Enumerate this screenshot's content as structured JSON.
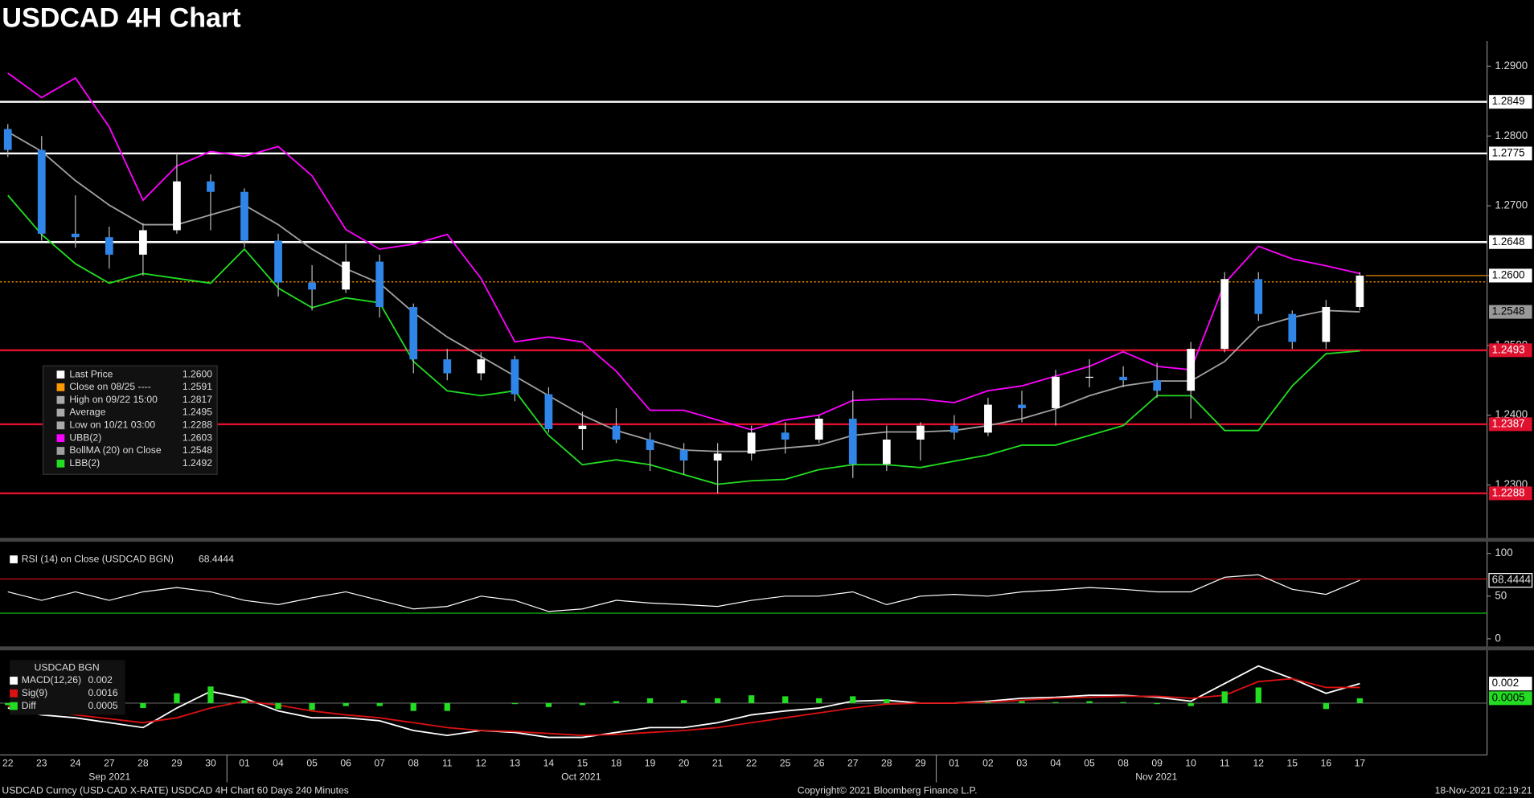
{
  "header": {
    "title": "USDCAD 4H Chart"
  },
  "footer": {
    "left": "USDCAD Curncy (USD-CAD X-RATE) USDCAD 4H Chart 60 Days 240 Minutes",
    "center": "Copyright© 2021 Bloomberg Finance L.P.",
    "right": "18-Nov-2021 02:19:21"
  },
  "chart_data": [
    {
      "type": "candlestick",
      "categories": [
        "22",
        "23",
        "24",
        "27",
        "28",
        "29",
        "30",
        "01",
        "04",
        "05",
        "06",
        "07",
        "08",
        "11",
        "12",
        "13",
        "14",
        "15",
        "18",
        "19",
        "20",
        "21",
        "22",
        "25",
        "26",
        "27",
        "28",
        "29",
        "01",
        "02",
        "03",
        "04",
        "05",
        "08",
        "09",
        "10",
        "11",
        "12",
        "15",
        "16",
        "17"
      ],
      "x_groups": [
        "Sep 2021",
        "Oct 2021",
        "Nov 2021"
      ],
      "open": [
        1.281,
        1.278,
        1.266,
        1.2655,
        1.263,
        1.2665,
        1.2735,
        1.272,
        1.265,
        1.259,
        1.258,
        1.262,
        1.2555,
        1.248,
        1.246,
        1.248,
        1.243,
        1.238,
        1.2385,
        1.2365,
        1.235,
        1.2335,
        1.2345,
        1.2375,
        1.2365,
        1.2395,
        1.233,
        1.2365,
        1.2385,
        1.2375,
        1.2415,
        1.241,
        1.2455,
        1.2455,
        1.245,
        1.2435,
        1.2495,
        1.2595,
        1.2545,
        1.2505,
        1.2555
      ],
      "high": [
        1.2817,
        1.28,
        1.2715,
        1.267,
        1.2675,
        1.2775,
        1.2745,
        1.2725,
        1.266,
        1.2615,
        1.2645,
        1.263,
        1.256,
        1.2495,
        1.249,
        1.2485,
        1.244,
        1.2405,
        1.241,
        1.2375,
        1.236,
        1.236,
        1.2385,
        1.239,
        1.24,
        1.2435,
        1.2385,
        1.239,
        1.24,
        1.2425,
        1.2435,
        1.2465,
        1.248,
        1.247,
        1.2475,
        1.2505,
        1.2605,
        1.2605,
        1.255,
        1.2565,
        1.2605
      ],
      "low": [
        1.277,
        1.265,
        1.264,
        1.261,
        1.26,
        1.266,
        1.2665,
        1.264,
        1.257,
        1.255,
        1.2575,
        1.254,
        1.246,
        1.245,
        1.245,
        1.242,
        1.2375,
        1.235,
        1.236,
        1.232,
        1.2315,
        1.2288,
        1.2335,
        1.2345,
        1.236,
        1.231,
        1.232,
        1.2335,
        1.2365,
        1.237,
        1.239,
        1.2385,
        1.244,
        1.244,
        1.2425,
        1.2395,
        1.249,
        1.2535,
        1.2495,
        1.2495,
        1.255
      ],
      "close": [
        1.278,
        1.266,
        1.2655,
        1.263,
        1.2665,
        1.2735,
        1.272,
        1.265,
        1.259,
        1.258,
        1.262,
        1.2555,
        1.248,
        1.246,
        1.248,
        1.243,
        1.238,
        1.2385,
        1.2365,
        1.235,
        1.2335,
        1.2345,
        1.2375,
        1.2365,
        1.2395,
        1.233,
        1.2365,
        1.2385,
        1.2375,
        1.2415,
        1.241,
        1.2455,
        1.2455,
        1.245,
        1.2435,
        1.2495,
        1.2595,
        1.2545,
        1.2505,
        1.2555,
        1.26
      ],
      "up_color": "#ffffff",
      "down_color": "#2f86e8",
      "series": [
        {
          "name": "UBB(2)",
          "color": "#ff00ff",
          "last_label": "1.2603",
          "values": [
            1.289,
            1.2855,
            1.2883,
            1.2813,
            1.2708,
            1.2757,
            1.2778,
            1.2771,
            1.2785,
            1.2743,
            1.2666,
            1.2638,
            1.2645,
            1.2659,
            1.2596,
            1.2505,
            1.2512,
            1.2505,
            1.2463,
            1.2407,
            1.2407,
            1.2393,
            1.2379,
            1.2393,
            1.24,
            1.2421,
            1.2423,
            1.2423,
            1.2418,
            1.2435,
            1.2442,
            1.2456,
            1.247,
            1.2491,
            1.247,
            1.2465,
            1.2589,
            1.2642,
            1.2624,
            1.2614,
            1.2603
          ]
        },
        {
          "name": "BollMA (20)  on Close",
          "color": "#a0a0a0",
          "last_label": "1.2548",
          "values": [
            1.2806,
            1.2778,
            1.2736,
            1.2701,
            1.2673,
            1.2673,
            1.2687,
            1.2701,
            1.2673,
            1.2638,
            1.261,
            1.2589,
            1.2547,
            1.2512,
            1.2484,
            1.2456,
            1.2428,
            1.24,
            1.2378,
            1.2364,
            1.235,
            1.2348,
            1.2348,
            1.2353,
            1.2357,
            1.2371,
            1.2376,
            1.2376,
            1.2378,
            1.2385,
            1.2395,
            1.2409,
            1.2428,
            1.2442,
            1.2449,
            1.2449,
            1.2477,
            1.2526,
            1.254,
            1.255,
            1.2548
          ]
        },
        {
          "name": "LBB(2)",
          "color": "#22dd22",
          "last_label": "1.2492",
          "values": [
            1.2715,
            1.2659,
            1.2617,
            1.2589,
            1.2603,
            1.2596,
            1.2589,
            1.2638,
            1.2582,
            1.2554,
            1.2568,
            1.2561,
            1.2477,
            1.2435,
            1.2428,
            1.2435,
            1.2371,
            1.2329,
            1.2336,
            1.2329,
            1.2315,
            1.2301,
            1.2306,
            1.2308,
            1.2322,
            1.2329,
            1.2329,
            1.2325,
            1.2334,
            1.2343,
            1.2357,
            1.2357,
            1.2371,
            1.2385,
            1.2428,
            1.2428,
            1.2378,
            1.2378,
            1.2442,
            1.2488,
            1.2492
          ]
        }
      ],
      "legend": [
        {
          "label": "Last Price",
          "value": "1.2600",
          "color": "#ffffff"
        },
        {
          "label": "Close on 08/25 ----",
          "value": "1.2591",
          "color": "#ff9900"
        },
        {
          "label": "High on 09/22 15:00",
          "value": "1.2817",
          "color": "#aaaaaa"
        },
        {
          "label": "Average",
          "value": "1.2495",
          "color": "#aaaaaa"
        },
        {
          "label": "Low on 10/21 03:00",
          "value": "1.2288",
          "color": "#aaaaaa"
        }
      ],
      "levels": [
        {
          "value": 1.2849,
          "label": "1.2849",
          "color": "#ffffff",
          "text_color": "#000000"
        },
        {
          "value": 1.2775,
          "label": "1.2775",
          "color": "#ffffff",
          "text_color": "#000000"
        },
        {
          "value": 1.2648,
          "label": "1.2648",
          "color": "#ffffff",
          "text_color": "#000000"
        },
        {
          "value": 1.2591,
          "color": "#ff9900",
          "dotted": true
        },
        {
          "value": 1.2493,
          "label": "1.2493",
          "color": "#e0102f",
          "text_color": "#ffffff"
        },
        {
          "value": 1.2387,
          "label": "1.2387",
          "color": "#e0102f",
          "text_color": "#ffffff"
        },
        {
          "value": 1.2288,
          "label": "1.2288",
          "color": "#e0102f",
          "text_color": "#ffffff"
        }
      ],
      "ylim": [
        1.2227,
        1.2936
      ],
      "yticks": [
        {
          "value": 1.23,
          "label": "1.2300"
        },
        {
          "value": 1.24,
          "label": "1.2400"
        },
        {
          "value": 1.25,
          "label": "1.2500"
        },
        {
          "value": 1.26,
          "label": "1.2600"
        },
        {
          "value": 1.27,
          "label": "1.2700"
        },
        {
          "value": 1.28,
          "label": "1.2800"
        },
        {
          "value": 1.29,
          "label": "1.2900"
        }
      ]
    },
    {
      "type": "line",
      "title": "RSI (14)  on Close (USDCAD BGN)",
      "last_label": "68.4444",
      "series": [
        {
          "color": "#ffffff",
          "values": [
            55,
            45,
            55,
            45,
            55,
            60,
            55,
            45,
            40,
            48,
            55,
            45,
            35,
            38,
            50,
            45,
            32,
            35,
            45,
            42,
            40,
            38,
            45,
            50,
            50,
            55,
            40,
            50,
            52,
            50,
            55,
            57,
            60,
            58,
            55,
            55,
            72,
            75,
            58,
            52,
            68.4444
          ]
        }
      ],
      "levels": [
        {
          "value": 70,
          "color": "#cc1111"
        },
        {
          "value": 30,
          "color": "#11bb11"
        }
      ],
      "ylim": [
        -10,
        109
      ],
      "yticks": [
        0,
        50,
        100
      ]
    },
    {
      "type": "macd",
      "title": "USDCAD BGN",
      "series": [
        {
          "name": "MACD(12,26)",
          "color": "#ffffff",
          "last_label": "0.002",
          "values": [
            -0.0005,
            -0.0012,
            -0.0015,
            -0.002,
            -0.0025,
            -0.0005,
            0.0012,
            0.0005,
            -0.0008,
            -0.0015,
            -0.0015,
            -0.0018,
            -0.0028,
            -0.0033,
            -0.0028,
            -0.003,
            -0.0035,
            -0.0035,
            -0.003,
            -0.0025,
            -0.0025,
            -0.002,
            -0.0012,
            -0.0008,
            -0.0005,
            0.0002,
            0.0003,
            0,
            0,
            0.0002,
            0.0005,
            0.0006,
            0.0008,
            0.0008,
            0.0006,
            0.0002,
            0.002,
            0.0038,
            0.0025,
            0.001,
            0.002
          ]
        },
        {
          "name": "Sig(9)",
          "color": "#dd1111",
          "last_label": "0.0016",
          "values": [
            -0.0003,
            -0.0008,
            -0.0012,
            -0.0016,
            -0.002,
            -0.0015,
            -0.0005,
            0.0002,
            -0.0002,
            -0.0008,
            -0.0012,
            -0.0015,
            -0.002,
            -0.0025,
            -0.0028,
            -0.0029,
            -0.0031,
            -0.0033,
            -0.0032,
            -0.003,
            -0.0028,
            -0.0025,
            -0.002,
            -0.0015,
            -0.001,
            -0.0005,
            -0.0001,
            0,
            0,
            0.0001,
            0.0003,
            0.0005,
            0.0006,
            0.0007,
            0.0007,
            0.0005,
            0.0008,
            0.0022,
            0.0025,
            0.0016,
            0.0016
          ]
        },
        {
          "name": "Diff",
          "color": "#22dd22",
          "kind": "bar",
          "last_label": "0.0005",
          "values": [
            -0.0002,
            -0.0004,
            -0.0003,
            -0.0004,
            -0.0005,
            0.001,
            0.0017,
            0.0003,
            -0.0006,
            -0.0007,
            -0.0003,
            -0.0003,
            -0.0008,
            -0.0008,
            0,
            -0.0001,
            -0.0004,
            -0.0002,
            0.0002,
            0.0005,
            0.0003,
            0.0005,
            0.0008,
            0.0007,
            0.0005,
            0.0007,
            0.0004,
            0,
            0,
            0.0001,
            0.0002,
            0.0001,
            0.0002,
            0.0001,
            -0.0001,
            -0.0003,
            0.0012,
            0.0016,
            0,
            -0.0006,
            0.0005
          ]
        }
      ],
      "ylim": [
        -0.0053,
        0.0053
      ]
    }
  ]
}
